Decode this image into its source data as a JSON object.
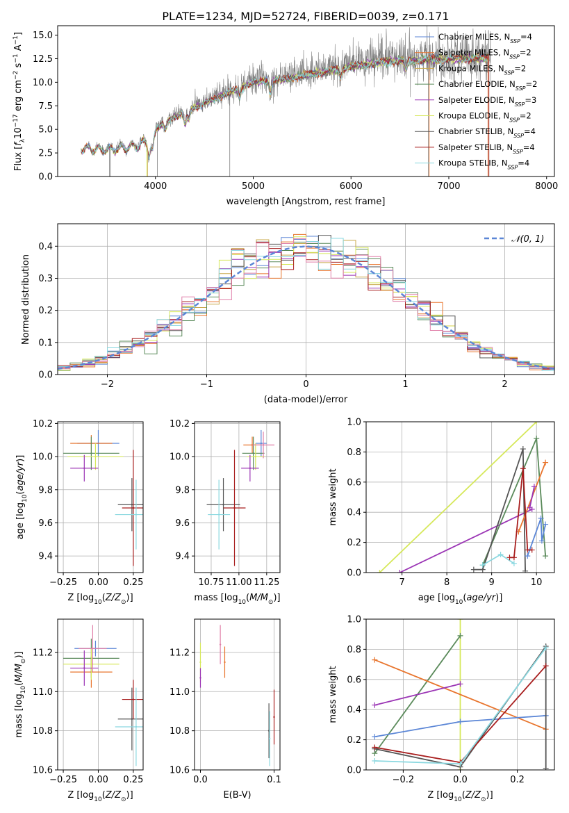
{
  "title": "PLATE=1234, MJD=52724, FIBERID=0039, z=0.171",
  "colors": {
    "c0": "#5b86d6",
    "c1": "#e8742c",
    "c2": "#c8a84a",
    "c3": "#5a8a5a",
    "c4": "#9b35b5",
    "c5": "#d6e85a",
    "c6": "#555555",
    "c7": "#a81e1e",
    "c8": "#8ad8e0",
    "data": "#808080",
    "gauss": "#5b86d6",
    "pink": "#e07fa8",
    "grid": "#b0b0b0"
  },
  "chart_data": [
    {
      "id": "spectrum",
      "type": "line",
      "xlabel": "wavelength [Angstrom, rest frame]",
      "ylabel": "Flux [f_λ 10^-17 erg cm^-2 s^-1 A^-1]",
      "xlim": [
        3000,
        8080
      ],
      "ylim": [
        0,
        16
      ],
      "xticks": [
        4000,
        5000,
        6000,
        7000,
        8000
      ],
      "yticks": [
        0.0,
        2.5,
        5.0,
        7.5,
        10.0,
        12.5,
        15.0
      ],
      "ytick_labels": [
        "0.0",
        "2.5",
        "5.0",
        "7.5",
        "10.0",
        "12.5",
        "15.0"
      ],
      "grid": false,
      "legend_position": "top-right",
      "legend": [
        "Chabrier MILES, N_SSP=4",
        "Salpeter MILES, N_SSP=2",
        "Kroupa MILES, N_SSP=2",
        "Chabrier ELODIE, N_SSP=2",
        "Salpeter ELODIE, N_SSP=3",
        "Kroupa ELODIE, N_SSP=2",
        "Chabrier STELIB, N_SSP=4",
        "Salpeter STELIB, N_SSP=4",
        "Kroupa STELIB, N_SSP=4"
      ],
      "continuum_points": [
        [
          3240,
          3.6
        ],
        [
          3500,
          3.4
        ],
        [
          3800,
          3.9
        ],
        [
          3950,
          4.6
        ],
        [
          4100,
          6.0
        ],
        [
          4300,
          7.0
        ],
        [
          4500,
          8.0
        ],
        [
          4800,
          9.4
        ],
        [
          5000,
          10.3
        ],
        [
          5300,
          10.6
        ],
        [
          5600,
          11.2
        ],
        [
          6000,
          12.0
        ],
        [
          6400,
          12.6
        ],
        [
          6800,
          12.8
        ],
        [
          7200,
          12.9
        ],
        [
          7430,
          13.0
        ]
      ],
      "data_range": [
        3240,
        7430
      ],
      "model_range": [
        3240,
        7400
      ]
    },
    {
      "id": "residuals",
      "type": "histogram",
      "xlabel": "(data-model)/error",
      "ylabel": "Normed distribution",
      "xlim": [
        -2.5,
        2.5
      ],
      "ylim": [
        0,
        0.47
      ],
      "xticks": [
        -2,
        -1,
        0,
        1,
        2
      ],
      "xtick_labels": [
        "−2",
        "−1",
        "0",
        "1",
        "2"
      ],
      "yticks": [
        0.0,
        0.1,
        0.2,
        0.3,
        0.4
      ],
      "ytick_labels": [
        "0.0",
        "0.1",
        "0.2",
        "0.3",
        "0.4"
      ],
      "grid": true,
      "legend_position": "top-right",
      "legend": [
        "𝒩(0, 1)"
      ],
      "bins": 40
    },
    {
      "id": "age_vs_Z",
      "type": "errorbar",
      "xlabel": "Z [log10(Z/Z⊙)]",
      "ylabel": "age [log10(age/yr)]",
      "xlim": [
        -0.29,
        0.32
      ],
      "ylim": [
        9.3,
        10.21
      ],
      "xticks": [
        -0.25,
        0.0,
        0.25
      ],
      "xtick_labels": [
        "−0.25",
        "0.00",
        "0.25"
      ],
      "yticks": [
        9.4,
        9.6,
        9.8,
        10.0,
        10.2
      ],
      "ytick_labels": [
        "9.4",
        "9.6",
        "9.8",
        "10.0",
        "10.2"
      ],
      "grid": true,
      "points": [
        {
          "c": "c0",
          "x": 0.0,
          "xerr": 0.15,
          "y": 10.08,
          "yerr": 0.08
        },
        {
          "c": "c1",
          "x": -0.05,
          "xerr": 0.15,
          "y": 10.08,
          "yerr": 0.05
        },
        {
          "c": "c3",
          "x": -0.05,
          "xerr": 0.2,
          "y": 10.02,
          "yerr": 0.1
        },
        {
          "c": "c5",
          "x": -0.02,
          "xerr": 0.2,
          "y": 10.0,
          "yerr": 0.08
        },
        {
          "c": "c4",
          "x": -0.1,
          "xerr": 0.1,
          "y": 9.93,
          "yerr": 0.08
        },
        {
          "c": "c6",
          "x": 0.24,
          "xerr": 0.1,
          "y": 9.71,
          "yerr": 0.16
        },
        {
          "c": "c7",
          "x": 0.25,
          "xerr": 0.08,
          "y": 9.69,
          "yerr": 0.35
        },
        {
          "c": "c8",
          "x": 0.27,
          "xerr": 0.15,
          "y": 9.65,
          "yerr": 0.21
        }
      ]
    },
    {
      "id": "age_vs_mass",
      "type": "errorbar",
      "xlabel": "mass [log10(M/M⊙)]",
      "ylabel": "",
      "xlim": [
        10.6,
        11.37
      ],
      "ylim": [
        9.3,
        10.21
      ],
      "xticks": [
        10.75,
        11.0,
        11.25
      ],
      "xtick_labels": [
        "10.75",
        "11.00",
        "11.25"
      ],
      "yticks": [
        9.4,
        9.6,
        9.8,
        10.0,
        10.2
      ],
      "ytick_labels": [
        "9.4",
        "9.6",
        "9.8",
        "10.0",
        "10.2"
      ],
      "grid": true,
      "points": [
        {
          "c": "c0",
          "x": 11.2,
          "xerr": 0.05,
          "y": 10.08,
          "yerr": 0.08
        },
        {
          "c": "c1",
          "x": 11.12,
          "xerr": 0.08,
          "y": 10.07,
          "yerr": 0.05
        },
        {
          "c": "c3",
          "x": 11.13,
          "xerr": 0.1,
          "y": 10.02,
          "yerr": 0.1
        },
        {
          "c": "c5",
          "x": 11.15,
          "xerr": 0.08,
          "y": 10.0,
          "yerr": 0.08
        },
        {
          "c": "c4",
          "x": 11.1,
          "xerr": 0.08,
          "y": 9.93,
          "yerr": 0.08
        },
        {
          "c": "pink",
          "x": 11.22,
          "xerr": 0.1,
          "y": 10.07,
          "yerr": 0.08
        },
        {
          "c": "c6",
          "x": 10.86,
          "xerr": 0.15,
          "y": 9.71,
          "yerr": 0.16
        },
        {
          "c": "c7",
          "x": 10.96,
          "xerr": 0.1,
          "y": 9.69,
          "yerr": 0.35
        },
        {
          "c": "c8",
          "x": 10.82,
          "xerr": 0.1,
          "y": 9.65,
          "yerr": 0.21
        }
      ]
    },
    {
      "id": "weight_vs_age",
      "type": "line",
      "xlabel": "age [log10(age/yr)]",
      "ylabel": "mass weight",
      "xlim": [
        6.2,
        10.4
      ],
      "ylim": [
        0,
        1.0
      ],
      "xticks": [
        7,
        8,
        9,
        10
      ],
      "xtick_labels": [
        "7",
        "8",
        "9",
        "10"
      ],
      "yticks": [
        0.0,
        0.2,
        0.4,
        0.6,
        0.8,
        1.0
      ],
      "ytick_labels": [
        "0.0",
        "0.2",
        "0.4",
        "0.6",
        "0.8",
        "1.0"
      ],
      "grid": true,
      "series": [
        {
          "c": "c5",
          "x": [
            6.5,
            10.0
          ],
          "y": [
            0.0,
            1.0
          ]
        },
        {
          "c": "c4",
          "x": [
            6.95,
            9.9
          ],
          "y": [
            0.0,
            0.42
          ]
        },
        {
          "c": "c3",
          "x": [
            8.8,
            10.0,
            10.2
          ],
          "y": [
            0.05,
            0.89,
            0.11
          ]
        },
        {
          "c": "c6",
          "x": [
            8.6,
            8.8,
            9.7,
            9.75
          ],
          "y": [
            0.02,
            0.02,
            0.82,
            0.01
          ]
        },
        {
          "c": "c1",
          "x": [
            9.6,
            10.2
          ],
          "y": [
            0.27,
            0.73
          ]
        },
        {
          "c": "c0",
          "x": [
            9.8,
            10.1,
            10.12,
            10.2
          ],
          "y": [
            0.11,
            0.36,
            0.21,
            0.32
          ]
        },
        {
          "c": "c8",
          "x": [
            8.8,
            9.2,
            9.5
          ],
          "y": [
            0.05,
            0.12,
            0.06
          ]
        },
        {
          "c": "c7",
          "x": [
            9.4,
            9.5,
            9.7,
            9.8,
            9.9
          ],
          "y": [
            0.1,
            0.1,
            0.69,
            0.15,
            0.15
          ]
        },
        {
          "c": "c4",
          "x": [
            9.85,
            9.95
          ],
          "y": [
            0.43,
            0.57
          ]
        }
      ]
    },
    {
      "id": "mass_vs_Z",
      "type": "errorbar",
      "xlabel": "Z [log10(Z/Z⊙)]",
      "ylabel": "mass [log10(M/M⊙)]",
      "xlim": [
        -0.29,
        0.32
      ],
      "ylim": [
        10.6,
        11.37
      ],
      "xticks": [
        -0.25,
        0.0,
        0.25
      ],
      "xtick_labels": [
        "−0.25",
        "0.00",
        "0.25"
      ],
      "yticks": [
        10.6,
        10.8,
        11.0,
        11.2
      ],
      "ytick_labels": [
        "10.6",
        "10.8",
        "11.0",
        "11.2"
      ],
      "grid": true,
      "points": [
        {
          "c": "c0",
          "x": -0.02,
          "xerr": 0.15,
          "y": 11.22,
          "yerr": 0.04
        },
        {
          "c": "c1",
          "x": -0.05,
          "xerr": 0.15,
          "y": 11.1,
          "yerr": 0.08
        },
        {
          "c": "c3",
          "x": -0.05,
          "xerr": 0.2,
          "y": 11.17,
          "yerr": 0.1
        },
        {
          "c": "c5",
          "x": -0.05,
          "xerr": 0.2,
          "y": 11.14,
          "yerr": 0.08
        },
        {
          "c": "c4",
          "x": -0.1,
          "xerr": 0.1,
          "y": 11.12,
          "yerr": 0.09
        },
        {
          "c": "pink",
          "x": -0.04,
          "xerr": 0.1,
          "y": 11.22,
          "yerr": 0.12
        },
        {
          "c": "c6",
          "x": 0.24,
          "xerr": 0.1,
          "y": 10.86,
          "yerr": 0.16
        },
        {
          "c": "c7",
          "x": 0.25,
          "xerr": 0.08,
          "y": 10.96,
          "yerr": 0.1
        },
        {
          "c": "c8",
          "x": 0.27,
          "xerr": 0.15,
          "y": 10.82,
          "yerr": 0.2
        }
      ]
    },
    {
      "id": "mass_vs_EBV",
      "type": "errorbar",
      "xlabel": "E(B-V)",
      "ylabel": "",
      "xlim": [
        -0.008,
        0.108
      ],
      "ylim": [
        10.6,
        11.37
      ],
      "xticks": [
        0.0,
        0.1
      ],
      "xtick_labels": [
        "0.0",
        "0.1"
      ],
      "yticks": [
        10.6,
        10.8,
        11.0,
        11.2
      ],
      "ytick_labels": [
        "10.6",
        "10.8",
        "11.0",
        "11.2"
      ],
      "grid": true,
      "points": [
        {
          "c": "c5",
          "x": 0.0,
          "xerr": 0,
          "y": 11.15,
          "yerr": 0.1
        },
        {
          "c": "c4",
          "x": 0.0,
          "xerr": 0,
          "y": 11.07,
          "yerr": 0.05
        },
        {
          "c": "pink",
          "x": 0.027,
          "xerr": 0,
          "y": 11.24,
          "yerr": 0.1
        },
        {
          "c": "c1",
          "x": 0.033,
          "xerr": 0,
          "y": 11.15,
          "yerr": 0.08
        },
        {
          "c": "c6",
          "x": 0.093,
          "xerr": 0,
          "y": 10.8,
          "yerr": 0.14
        },
        {
          "c": "c8",
          "x": 0.094,
          "xerr": 0,
          "y": 10.76,
          "yerr": 0.14
        },
        {
          "c": "c7",
          "x": 0.1,
          "xerr": 0,
          "y": 10.87,
          "yerr": 0.14
        }
      ]
    },
    {
      "id": "weight_vs_Z",
      "type": "line",
      "xlabel": "Z [log10(Z/Z⊙)]",
      "ylabel": "mass weight",
      "xlim": [
        -0.33,
        0.33
      ],
      "ylim": [
        0,
        1.0
      ],
      "xticks": [
        -0.2,
        0.0,
        0.2
      ],
      "xtick_labels": [
        "−0.2",
        "0.0",
        "0.2"
      ],
      "yticks": [
        0.0,
        0.2,
        0.4,
        0.6,
        0.8,
        1.0
      ],
      "ytick_labels": [
        "0.0",
        "0.2",
        "0.4",
        "0.6",
        "0.8",
        "1.0"
      ],
      "grid": true,
      "series": [
        {
          "c": "c5",
          "x": [
            0.0,
            0.0
          ],
          "y": [
            0.0,
            1.0
          ]
        },
        {
          "c": "c3",
          "x": [
            -0.3,
            0.0
          ],
          "y": [
            0.11,
            0.89
          ]
        },
        {
          "c": "c1",
          "x": [
            -0.3,
            0.3
          ],
          "y": [
            0.73,
            0.27
          ]
        },
        {
          "c": "c4",
          "x": [
            -0.3,
            0.0
          ],
          "y": [
            0.43,
            0.57
          ]
        },
        {
          "c": "c0",
          "x": [
            -0.3,
            0.0,
            0.3
          ],
          "y": [
            0.22,
            0.32,
            0.36
          ]
        },
        {
          "c": "c6",
          "x": [
            -0.3,
            0.0,
            0.3,
            0.3
          ],
          "y": [
            0.14,
            0.02,
            0.82,
            0.01
          ]
        },
        {
          "c": "c7",
          "x": [
            -0.3,
            0.0,
            0.3
          ],
          "y": [
            0.15,
            0.05,
            0.69
          ]
        },
        {
          "c": "c8",
          "x": [
            -0.3,
            0.0,
            0.3
          ],
          "y": [
            0.06,
            0.04,
            0.81
          ]
        }
      ]
    }
  ]
}
